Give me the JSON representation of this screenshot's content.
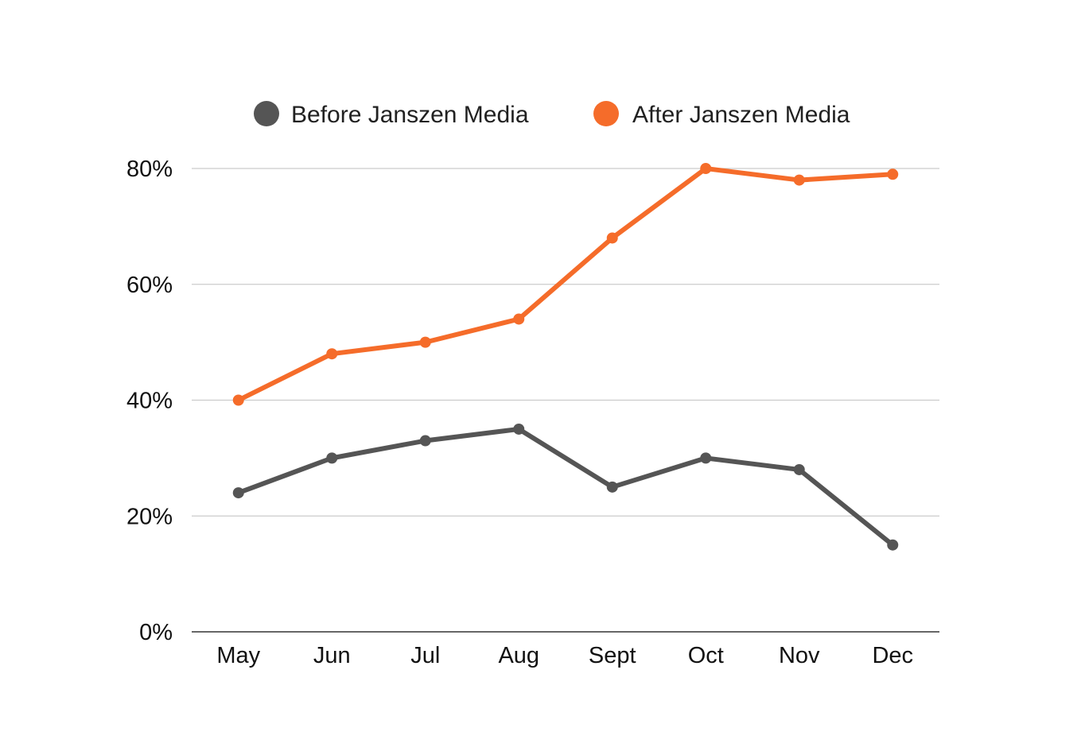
{
  "chart_data": {
    "type": "line",
    "title": "",
    "xlabel": "",
    "ylabel": "",
    "categories": [
      "May",
      "Jun",
      "Jul",
      "Aug",
      "Sept",
      "Oct",
      "Nov",
      "Dec"
    ],
    "series": [
      {
        "name": "Before Janszen Media",
        "color": "#555555",
        "values": [
          24,
          30,
          33,
          35,
          25,
          30,
          28,
          15
        ]
      },
      {
        "name": "After Janszen Media",
        "color": "#f56c2a",
        "values": [
          40,
          48,
          50,
          54,
          68,
          80,
          78,
          79
        ]
      }
    ],
    "ylim": [
      0,
      80
    ],
    "yticks": [
      0,
      20,
      40,
      60,
      80
    ],
    "ytick_labels": [
      "0%",
      "20%",
      "40%",
      "60%",
      "80%"
    ],
    "grid": true,
    "legend_position": "top-center"
  }
}
